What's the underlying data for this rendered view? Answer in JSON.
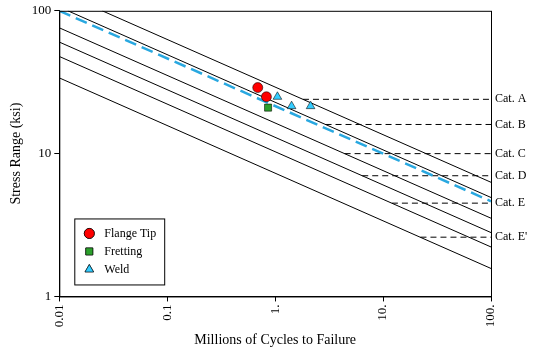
{
  "chart_data": {
    "type": "scatter",
    "x_label": "Millions of Cycles to Failure",
    "y_label": "Stress Range (ksi)",
    "log": true,
    "grid": false,
    "legend": "lower left",
    "xlim": [
      0.01,
      100
    ],
    "xticks": [
      0.01,
      0.1,
      {
        "value": 1,
        "label": "1."
      },
      {
        "value": 10,
        "label": "10."
      },
      {
        "value": 100,
        "label": "100."
      }
    ],
    "ylim": [
      1,
      100
    ],
    "yticks": [
      1,
      10,
      100
    ],
    "series": [
      {
        "name": "Flange Tip",
        "color": "#ff0000",
        "marker": "circle",
        "x": [
          0.69,
          0.83
        ],
        "values": [
          29,
          25
        ]
      },
      {
        "name": "Fretting",
        "color": "#2ca02c",
        "marker": "square",
        "x": [
          0.86
        ],
        "values": [
          21
        ]
      },
      {
        "name": "Weld",
        "color": "#33ccff",
        "marker": "triangle",
        "x": [
          1.05,
          1.42,
          2.13
        ],
        "values": [
          25,
          21.5,
          21.5
        ]
      }
    ],
    "reference_lines": [
      {
        "label": "Cat. A",
        "color": "#000000",
        "line_style": "solid",
        "x": [
          0.025,
          100
        ],
        "values": [
          100,
          6.3
        ],
        "threshold": 24,
        "threshold_x": 1.81
      },
      {
        "label": "Cat. B",
        "color": "#000000",
        "line_style": "solid",
        "x": [
          0.012,
          100
        ],
        "values": [
          100,
          4.93
        ],
        "threshold": 16,
        "threshold_x": 2.93
      },
      {
        "label": "Cat. C",
        "color": "#000000",
        "line_style": "solid",
        "x": [
          0.01,
          100
        ],
        "values": [
          76,
          3.53
        ],
        "threshold": 10,
        "threshold_x": 4.4
      },
      {
        "label": "Cat. D",
        "color": "#000000",
        "line_style": "solid",
        "x": [
          0.01,
          100
        ],
        "values": [
          60.4,
          2.8
        ],
        "threshold": 7,
        "threshold_x": 6.41
      },
      {
        "label": "Cat. E",
        "color": "#000000",
        "line_style": "solid",
        "x": [
          0.01,
          100
        ],
        "values": [
          47.9,
          2.22
        ],
        "threshold": 4.5,
        "threshold_x": 12.07
      },
      {
        "label": "Cat. E'",
        "color": "#000000",
        "line_style": "solid",
        "x": [
          0.01,
          100
        ],
        "values": [
          33.9,
          1.57
        ],
        "threshold": 2.6,
        "threshold_x": 22.2
      }
    ],
    "design_line": {
      "color": "#29a8e0",
      "line_style": "dashed",
      "x": [
        0.01,
        100
      ],
      "values": [
        100,
        4.64
      ]
    }
  }
}
